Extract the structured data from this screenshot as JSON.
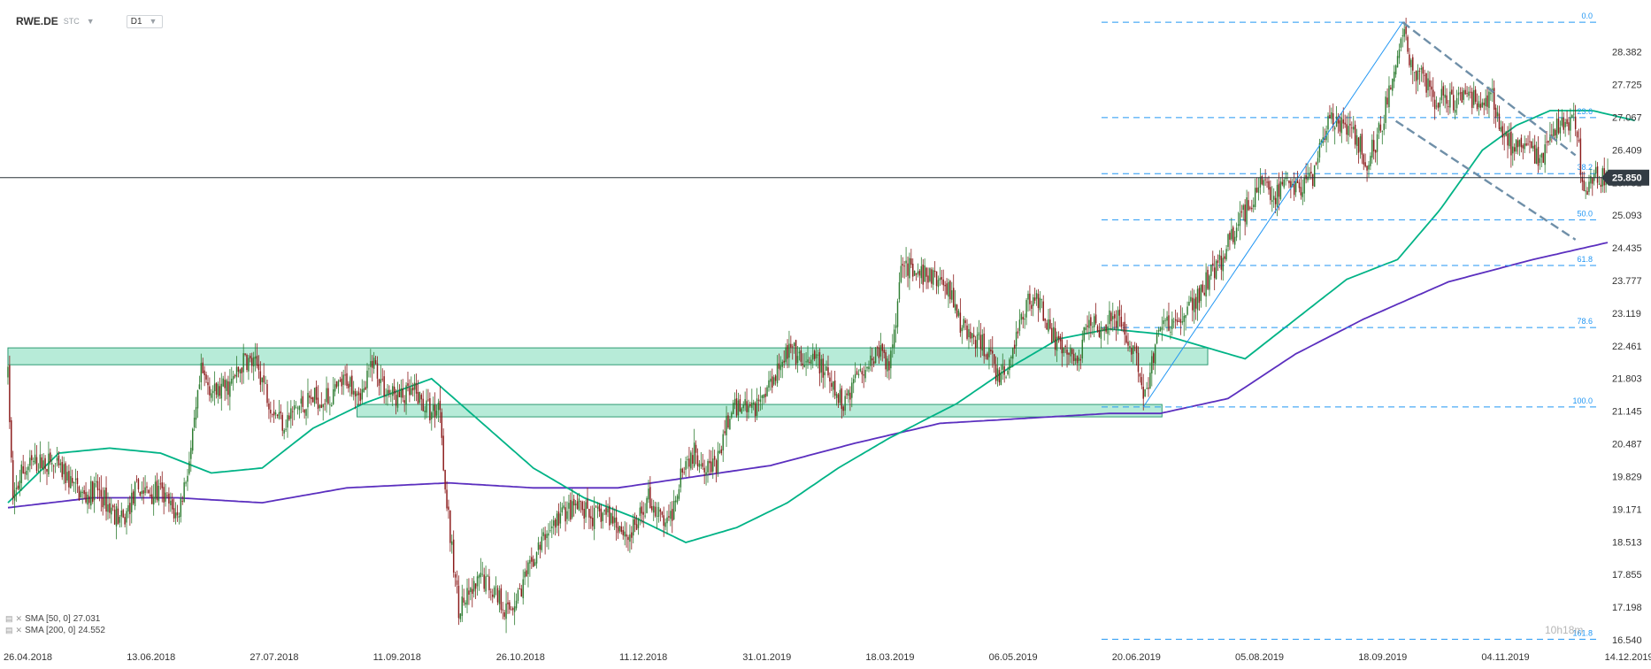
{
  "header": {
    "symbol": "RWE.DE",
    "type": "STC",
    "timeframe": "D1"
  },
  "legend": {
    "items": [
      {
        "label": "SMA [50, 0]",
        "value": "27.031"
      },
      {
        "label": "SMA [200, 0]",
        "value": "24.552"
      }
    ]
  },
  "watermark": {
    "brand": "10",
    "trail": "h18m"
  },
  "colors": {
    "bull": "#2e7d32",
    "bear": "#8b1a1a",
    "sma50": "#00b386",
    "sma200": "#5b2fbf",
    "fib": "#2196f3",
    "zone_fill": "#5fd3a8",
    "zone_stroke": "#2e9b73",
    "channel": "#6f8fa8",
    "price_tag": "#333c44"
  },
  "chart_data": {
    "type": "candlestick",
    "title": "RWE.DE",
    "x_ticks": [
      "26.04.2018",
      "13.06.2018",
      "27.07.2018",
      "11.09.2018",
      "26.10.2018",
      "11.12.2018",
      "31.01.2019",
      "18.03.2019",
      "06.05.2019",
      "20.06.2019",
      "05.08.2019",
      "18.09.2019",
      "04.11.2019",
      "14.12.2019"
    ],
    "y_ticks": [
      "28.382",
      "27.725",
      "27.067",
      "26.409",
      "25.751",
      "25.093",
      "24.435",
      "23.777",
      "23.119",
      "22.461",
      "21.803",
      "21.145",
      "20.487",
      "19.829",
      "19.171",
      "18.513",
      "17.855",
      "17.198",
      "16.540"
    ],
    "ylim": [
      16.45,
      29.0
    ],
    "current_price": "25.850",
    "current_price_value": 25.85,
    "fibonacci": [
      {
        "label": "0.0",
        "value": 28.98
      },
      {
        "label": "23.6",
        "value": 27.06
      },
      {
        "label": "38.2",
        "value": 25.93
      },
      {
        "label": "50.0",
        "value": 25.0
      },
      {
        "label": "61.8",
        "value": 24.08
      },
      {
        "label": "78.6",
        "value": 22.83
      },
      {
        "label": "100.0",
        "value": 21.23
      },
      {
        "label": "161.8",
        "value": 16.55
      }
    ],
    "sma50_anchors": [
      [
        0,
        19.3
      ],
      [
        30,
        20.3
      ],
      [
        60,
        20.4
      ],
      [
        90,
        20.3
      ],
      [
        120,
        19.9
      ],
      [
        150,
        20.0
      ],
      [
        180,
        20.8
      ],
      [
        210,
        21.3
      ],
      [
        250,
        21.8
      ],
      [
        280,
        20.9
      ],
      [
        310,
        20.0
      ],
      [
        340,
        19.4
      ],
      [
        370,
        19.0
      ],
      [
        400,
        18.5
      ],
      [
        430,
        18.8
      ],
      [
        460,
        19.3
      ],
      [
        490,
        20.0
      ],
      [
        520,
        20.6
      ],
      [
        560,
        21.3
      ],
      [
        590,
        22.0
      ],
      [
        620,
        22.6
      ],
      [
        650,
        22.8
      ],
      [
        680,
        22.7
      ],
      [
        700,
        22.5
      ],
      [
        730,
        22.2
      ],
      [
        760,
        23.0
      ],
      [
        790,
        23.8
      ],
      [
        820,
        24.2
      ],
      [
        845,
        25.2
      ],
      [
        870,
        26.4
      ],
      [
        890,
        26.9
      ],
      [
        910,
        27.2
      ],
      [
        935,
        27.2
      ],
      [
        960,
        27.0
      ]
    ],
    "sma200_anchors": [
      [
        0,
        19.2
      ],
      [
        50,
        19.4
      ],
      [
        100,
        19.4
      ],
      [
        150,
        19.3
      ],
      [
        200,
        19.6
      ],
      [
        260,
        19.7
      ],
      [
        310,
        19.6
      ],
      [
        360,
        19.6
      ],
      [
        400,
        19.8
      ],
      [
        450,
        20.05
      ],
      [
        500,
        20.5
      ],
      [
        550,
        20.9
      ],
      [
        600,
        21.0
      ],
      [
        650,
        21.1
      ],
      [
        680,
        21.1
      ],
      [
        720,
        21.4
      ],
      [
        760,
        22.3
      ],
      [
        800,
        23.0
      ],
      [
        850,
        23.75
      ],
      [
        900,
        24.2
      ],
      [
        945,
        24.55
      ]
    ],
    "zones": [
      {
        "name": "upper-resistance-zone",
        "x0": 0,
        "x1": 708,
        "y_low": 22.08,
        "y_high": 22.42
      },
      {
        "name": "lower-support-zone",
        "x0": 206,
        "x1": 681,
        "y_low": 21.03,
        "y_high": 21.28
      }
    ],
    "trendlines": [
      {
        "name": "impulse-line",
        "x0": 670,
        "y0": 21.23,
        "x1": 823,
        "y1": 28.98
      },
      {
        "name": "channel-upper",
        "x0": 823,
        "y0": 28.98,
        "x1": 925,
        "y1": 26.3
      },
      {
        "name": "channel-lower",
        "x0": 819,
        "y0": 26.99,
        "x1": 925,
        "y1": 24.6
      }
    ],
    "price_path": [
      [
        0,
        21.85
      ],
      [
        3,
        19.3
      ],
      [
        8,
        19.9
      ],
      [
        15,
        20.1
      ],
      [
        25,
        20.1
      ],
      [
        35,
        19.8
      ],
      [
        45,
        19.4
      ],
      [
        52,
        19.6
      ],
      [
        60,
        19.2
      ],
      [
        68,
        18.9
      ],
      [
        76,
        19.6
      ],
      [
        82,
        19.5
      ],
      [
        90,
        19.5
      ],
      [
        100,
        19.0
      ],
      [
        108,
        20.3
      ],
      [
        114,
        21.9
      ],
      [
        122,
        21.5
      ],
      [
        132,
        21.7
      ],
      [
        140,
        22.2
      ],
      [
        148,
        22.0
      ],
      [
        155,
        21.3
      ],
      [
        163,
        20.9
      ],
      [
        170,
        21.2
      ],
      [
        180,
        21.4
      ],
      [
        190,
        21.4
      ],
      [
        200,
        21.8
      ],
      [
        210,
        21.5
      ],
      [
        215,
        22.2
      ],
      [
        222,
        21.6
      ],
      [
        230,
        21.4
      ],
      [
        240,
        21.5
      ],
      [
        250,
        21.1
      ],
      [
        255,
        21.3
      ],
      [
        258,
        19.6
      ],
      [
        262,
        18.3
      ],
      [
        266,
        17.2
      ],
      [
        272,
        17.4
      ],
      [
        280,
        17.8
      ],
      [
        288,
        17.5
      ],
      [
        295,
        17.1
      ],
      [
        300,
        17.4
      ],
      [
        306,
        17.8
      ],
      [
        312,
        18.3
      ],
      [
        320,
        18.8
      ],
      [
        328,
        19.1
      ],
      [
        336,
        19.2
      ],
      [
        345,
        19.0
      ],
      [
        352,
        19.1
      ],
      [
        360,
        18.9
      ],
      [
        366,
        18.6
      ],
      [
        372,
        18.9
      ],
      [
        378,
        19.4
      ],
      [
        385,
        19.0
      ],
      [
        390,
        18.8
      ],
      [
        398,
        20.1
      ],
      [
        405,
        20.3
      ],
      [
        412,
        20.1
      ],
      [
        418,
        20.0
      ],
      [
        425,
        21.0
      ],
      [
        432,
        21.3
      ],
      [
        440,
        21.2
      ],
      [
        448,
        21.6
      ],
      [
        456,
        22.2
      ],
      [
        462,
        22.4
      ],
      [
        470,
        22.0
      ],
      [
        478,
        22.2
      ],
      [
        486,
        21.6
      ],
      [
        492,
        21.3
      ],
      [
        497,
        21.6
      ],
      [
        502,
        22.0
      ],
      [
        508,
        22.1
      ],
      [
        514,
        22.4
      ],
      [
        520,
        22.0
      ],
      [
        524,
        23.1
      ],
      [
        528,
        24.3
      ],
      [
        535,
        23.8
      ],
      [
        542,
        23.9
      ],
      [
        548,
        23.8
      ],
      [
        556,
        23.6
      ],
      [
        562,
        22.9
      ],
      [
        570,
        22.6
      ],
      [
        578,
        22.4
      ],
      [
        584,
        21.8
      ],
      [
        590,
        22.0
      ],
      [
        596,
        22.8
      ],
      [
        602,
        23.4
      ],
      [
        608,
        23.4
      ],
      [
        614,
        22.9
      ],
      [
        620,
        22.4
      ],
      [
        625,
        22.3
      ],
      [
        632,
        22.2
      ],
      [
        638,
        23.1
      ],
      [
        645,
        22.8
      ],
      [
        652,
        23.2
      ],
      [
        660,
        22.6
      ],
      [
        665,
        22.4
      ],
      [
        670,
        21.3
      ],
      [
        675,
        22.1
      ],
      [
        680,
        22.9
      ],
      [
        686,
        22.8
      ],
      [
        692,
        23.0
      ],
      [
        700,
        23.3
      ],
      [
        708,
        23.8
      ],
      [
        716,
        24.2
      ],
      [
        724,
        24.8
      ],
      [
        732,
        25.3
      ],
      [
        740,
        25.8
      ],
      [
        748,
        25.5
      ],
      [
        756,
        25.7
      ],
      [
        762,
        25.6
      ],
      [
        770,
        25.9
      ],
      [
        776,
        26.8
      ],
      [
        782,
        27.0
      ],
      [
        790,
        26.8
      ],
      [
        796,
        26.6
      ],
      [
        802,
        26.2
      ],
      [
        810,
        26.8
      ],
      [
        815,
        27.6
      ],
      [
        820,
        28.2
      ],
      [
        823,
        28.9
      ],
      [
        828,
        28.1
      ],
      [
        835,
        27.9
      ],
      [
        842,
        27.4
      ],
      [
        848,
        27.5
      ],
      [
        855,
        27.3
      ],
      [
        862,
        27.6
      ],
      [
        868,
        27.2
      ],
      [
        875,
        27.6
      ],
      [
        882,
        26.8
      ],
      [
        888,
        26.4
      ],
      [
        895,
        26.4
      ],
      [
        900,
        26.3
      ],
      [
        907,
        26.3
      ],
      [
        913,
        26.8
      ],
      [
        919,
        27.0
      ],
      [
        925,
        26.9
      ],
      [
        930,
        25.6
      ],
      [
        935,
        25.9
      ],
      [
        940,
        25.85
      ]
    ]
  }
}
